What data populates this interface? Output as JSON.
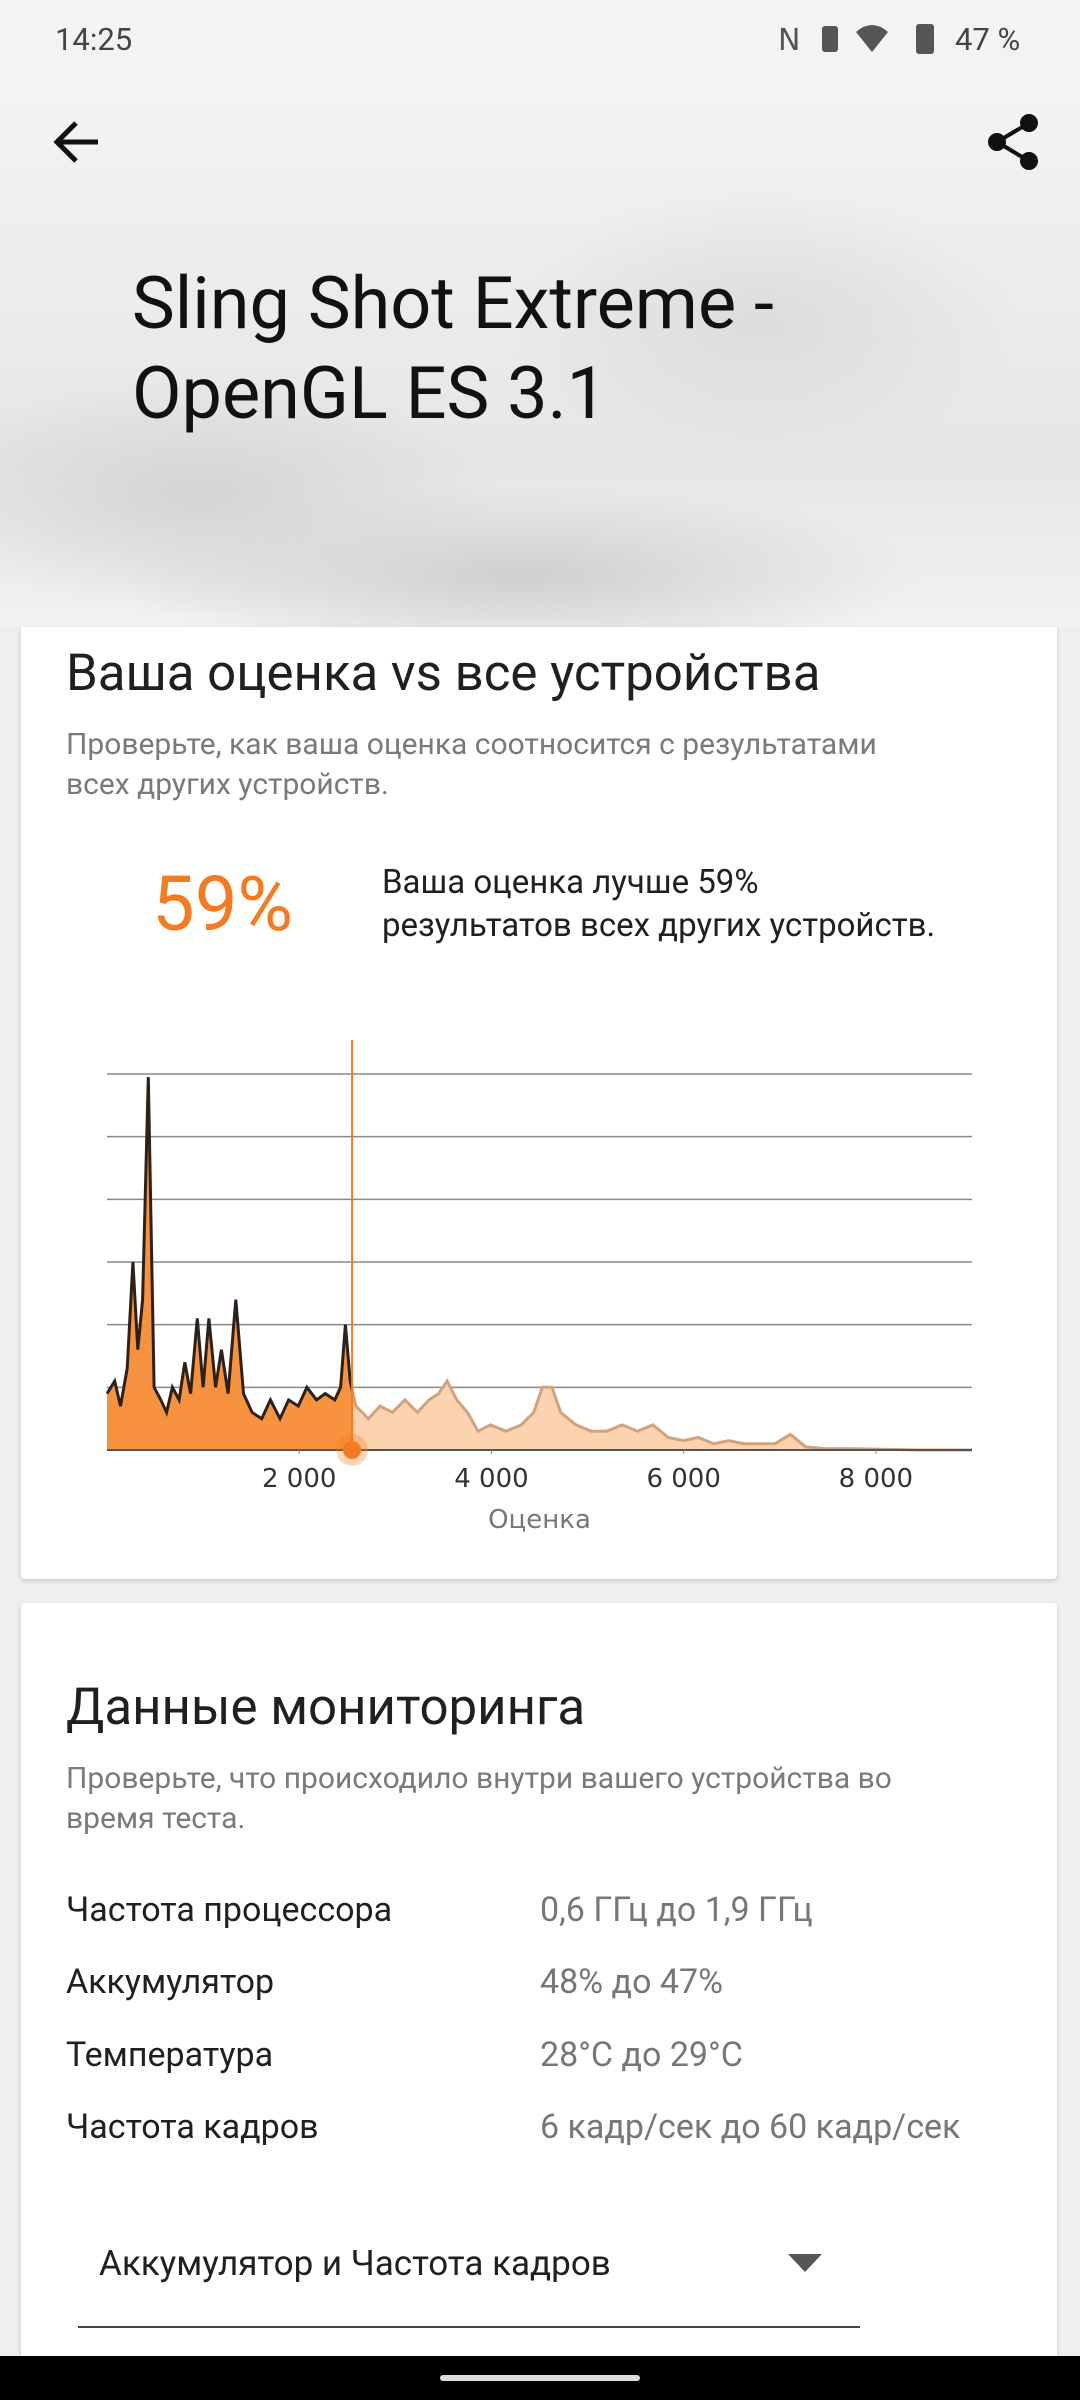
{
  "status_bar": {
    "time": "14:25",
    "battery": "47 %"
  },
  "header": {
    "title_lines": [
      "Sling Shot Extreme -",
      "OpenGL ES 3.1"
    ]
  },
  "comparison": {
    "heading": "Ваша оценка vs все устройства",
    "subtitle_lines": [
      "Проверьте, как ваша оценка соотносится с результатами",
      "всех других устройств."
    ],
    "percent": "59%",
    "description_lines": [
      "Ваша оценка лучше 59%",
      "результатов всех других устройств."
    ]
  },
  "chart_data": {
    "type": "area",
    "x": [
      0,
      80,
      140,
      210,
      270,
      320,
      370,
      430,
      490,
      560,
      620,
      680,
      750,
      810,
      870,
      940,
      1000,
      1060,
      1130,
      1190,
      1260,
      1340,
      1420,
      1510,
      1610,
      1700,
      1800,
      1890,
      1990,
      2080,
      2180,
      2270,
      2370,
      2430,
      2480,
      2530,
      2590,
      2720,
      2840,
      2970,
      3100,
      3230,
      3350,
      3450,
      3540,
      3640,
      3750,
      3860,
      3990,
      4150,
      4310,
      4440,
      4530,
      4630,
      4720,
      4880,
      5040,
      5200,
      5360,
      5520,
      5680,
      5840,
      6000,
      6150,
      6310,
      6470,
      6630,
      6790,
      6950,
      7110,
      7270,
      7490,
      7810,
      8120,
      8440,
      9000
    ],
    "values": [
      0.9,
      1.1,
      0.7,
      1.3,
      3.0,
      1.6,
      2.4,
      5.95,
      1.0,
      0.8,
      0.6,
      1.0,
      0.8,
      1.4,
      0.9,
      2.1,
      1.0,
      2.1,
      1.0,
      1.6,
      0.9,
      2.4,
      0.9,
      0.6,
      0.5,
      0.8,
      0.5,
      0.8,
      0.7,
      1.0,
      0.8,
      0.9,
      0.8,
      1.0,
      2.0,
      1.1,
      0.7,
      0.5,
      0.7,
      0.6,
      0.8,
      0.6,
      0.8,
      0.9,
      1.1,
      0.8,
      0.6,
      0.3,
      0.4,
      0.3,
      0.4,
      0.6,
      1.0,
      1.0,
      0.6,
      0.4,
      0.3,
      0.3,
      0.4,
      0.3,
      0.4,
      0.2,
      0.15,
      0.2,
      0.1,
      0.15,
      0.1,
      0.1,
      0.1,
      0.25,
      0.05,
      0.02,
      0.02,
      0.01,
      0,
      0
    ],
    "xlim": [
      0,
      9000
    ],
    "ylim": [
      0,
      6
    ],
    "xticks": [
      {
        "value": 2000,
        "label": "2 000"
      },
      {
        "value": 4000,
        "label": "4 000"
      },
      {
        "value": 6000,
        "label": "6 000"
      },
      {
        "value": 8000,
        "label": "8 000"
      }
    ],
    "yticks": [
      1,
      2,
      3,
      4,
      5,
      6
    ],
    "grid": true,
    "xlabel": "Оценка",
    "marker_x": 2550,
    "fill_below": "#f7923f",
    "fill_above": "#fcd3b0",
    "line_below": "#2e2118",
    "line_above": "#d2a27c",
    "marker_color": "#f47b20"
  },
  "monitoring": {
    "heading": "Данные мониторинга",
    "subtitle_lines": [
      "Проверьте, что происходило внутри вашего устройства во",
      "время теста."
    ],
    "rows": [
      {
        "label": "Частота процессора",
        "value": "0,6 ГГц до 1,9 ГГц"
      },
      {
        "label": "Аккумулятор",
        "value": "48% до 47%"
      },
      {
        "label": "Температура",
        "value": "28°C до 29°C"
      },
      {
        "label": "Частота кадров",
        "value": "6 кадр/сек до 60 кадр/сек"
      }
    ],
    "dropdown": "Аккумулятор и Частота кадров"
  }
}
